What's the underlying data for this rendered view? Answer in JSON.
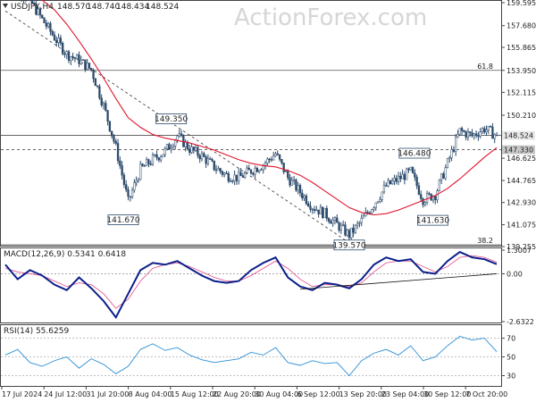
{
  "chart_data": {
    "type": "candlestick",
    "header": {
      "symbol": "USDJPY,H4",
      "open": "148.570",
      "high": "148.740",
      "low": "148.434",
      "close": "148.524"
    },
    "watermark": "ActionForex.com",
    "price_axis": {
      "labels": [
        "159.595",
        "157.680",
        "155.865",
        "153.950",
        "152.115",
        "150.210",
        "148.524",
        "147.330",
        "146.625",
        "144.765",
        "142.930",
        "141.075",
        "139.255"
      ]
    },
    "fib_levels": [
      {
        "label": "61.8",
        "price": 153.95
      },
      {
        "label": "38.2",
        "price": 139.4
      }
    ],
    "horizontal_lines": [
      {
        "price": 148.524,
        "style": "solid",
        "label": "148.524"
      },
      {
        "price": 147.33,
        "style": "dashed",
        "label": "147.330"
      }
    ],
    "annotations": [
      {
        "text": "149.350",
        "x": 13.5,
        "price": 149.35
      },
      {
        "text": "141.670",
        "x": 9.6,
        "price": 141.67
      },
      {
        "text": "139.570",
        "x": 28.0,
        "price": 139.57
      },
      {
        "text": "146.480",
        "x": 33.3,
        "price": 146.48
      },
      {
        "text": "141.630",
        "x": 34.8,
        "price": 141.63
      }
    ],
    "price_series": {
      "x": [
        0,
        1,
        2,
        3,
        4,
        5,
        6,
        7,
        8,
        9,
        10,
        11,
        12,
        13,
        14,
        15,
        16,
        17,
        18,
        19,
        20,
        21,
        22,
        23,
        24,
        25,
        26,
        27,
        28,
        29,
        30,
        31,
        32,
        33,
        34,
        35,
        36,
        37,
        38,
        39,
        40
      ],
      "close": [
        161.5,
        160.8,
        159.8,
        158.2,
        156.7,
        155.3,
        154.8,
        154.0,
        151.0,
        147.5,
        143.0,
        145.7,
        146.5,
        147.2,
        148.5,
        147.4,
        146.8,
        145.9,
        145.2,
        145.0,
        145.6,
        146.1,
        147.0,
        145.0,
        143.8,
        142.6,
        142.0,
        141.1,
        140.2,
        141.4,
        142.8,
        144.3,
        144.9,
        145.5,
        143.2,
        143.6,
        146.2,
        148.9,
        148.5,
        149.1,
        148.5
      ]
    },
    "moving_average": {
      "close": [
        161.2,
        160.9,
        160.4,
        159.8,
        159.0,
        157.8,
        156.4,
        154.9,
        153.3,
        151.6,
        150.0,
        149.2,
        148.6,
        148.3,
        148.1,
        147.9,
        147.6,
        147.3,
        146.9,
        146.5,
        146.2,
        146.0,
        145.9,
        145.6,
        145.2,
        144.6,
        143.9,
        143.2,
        142.5,
        142.1,
        141.9,
        142.0,
        142.3,
        142.7,
        143.1,
        143.5,
        144.1,
        144.9,
        145.8,
        146.7,
        147.5
      ]
    },
    "trendline": {
      "x1": 0,
      "price1": 158.9,
      "x2": 28,
      "price2": 139.57
    },
    "macd": {
      "label": "MACD(12,26,9) 0.5341 0.6418",
      "axis_labels": [
        "1.3007",
        "0.00",
        "-2.6322"
      ],
      "ylim": [
        -2.6322,
        1.3007
      ],
      "main": [
        0.5,
        -0.3,
        0.2,
        -0.1,
        -0.6,
        -0.9,
        -0.2,
        -0.8,
        -1.5,
        -2.4,
        -1.1,
        0.2,
        0.6,
        0.5,
        0.7,
        0.3,
        -0.1,
        -0.4,
        -0.5,
        -0.4,
        0.2,
        0.6,
        0.9,
        -0.2,
        -0.7,
        -0.9,
        -0.5,
        -0.6,
        -0.8,
        -0.3,
        0.5,
        0.9,
        0.7,
        0.8,
        0.1,
        0.0,
        0.7,
        1.2,
        0.9,
        0.8,
        0.53
      ],
      "signal": [
        0.3,
        0.1,
        0.0,
        -0.1,
        -0.4,
        -0.7,
        -0.5,
        -0.6,
        -1.1,
        -1.9,
        -1.4,
        -0.4,
        0.3,
        0.5,
        0.6,
        0.4,
        0.1,
        -0.2,
        -0.4,
        -0.4,
        -0.1,
        0.3,
        0.7,
        0.3,
        -0.3,
        -0.7,
        -0.6,
        -0.6,
        -0.7,
        -0.5,
        0.1,
        0.6,
        0.7,
        0.7,
        0.4,
        0.1,
        0.4,
        0.9,
        1.0,
        0.9,
        0.64
      ],
      "trendline": {
        "x1": 24,
        "v1": -0.85,
        "x2": 40,
        "v2": 0.0
      }
    },
    "rsi": {
      "label": "RSI(14) 55.6259",
      "axis_labels": [
        "70",
        "50",
        "30"
      ],
      "ylim": [
        20,
        82
      ],
      "values": [
        52,
        58,
        44,
        40,
        46,
        50,
        38,
        48,
        42,
        32,
        40,
        58,
        64,
        57,
        60,
        52,
        47,
        44,
        46,
        48,
        55,
        52,
        60,
        44,
        41,
        46,
        43,
        44,
        30,
        46,
        54,
        58,
        52,
        62,
        46,
        50,
        62,
        72,
        68,
        70,
        55.6
      ]
    },
    "time_axis": {
      "labels": [
        "17 Jul 2024",
        "24 Jul 12:00",
        "31 Jul 20:00",
        "8 Aug 04:00",
        "15 Aug 12:00",
        "22 Aug 20:00",
        "30 Aug 04:00",
        "6 Sep 12:00",
        "13 Sep 20:00",
        "23 Sep 04:00",
        "30 Sep 12:00",
        "7 Oct 20:00"
      ]
    }
  }
}
